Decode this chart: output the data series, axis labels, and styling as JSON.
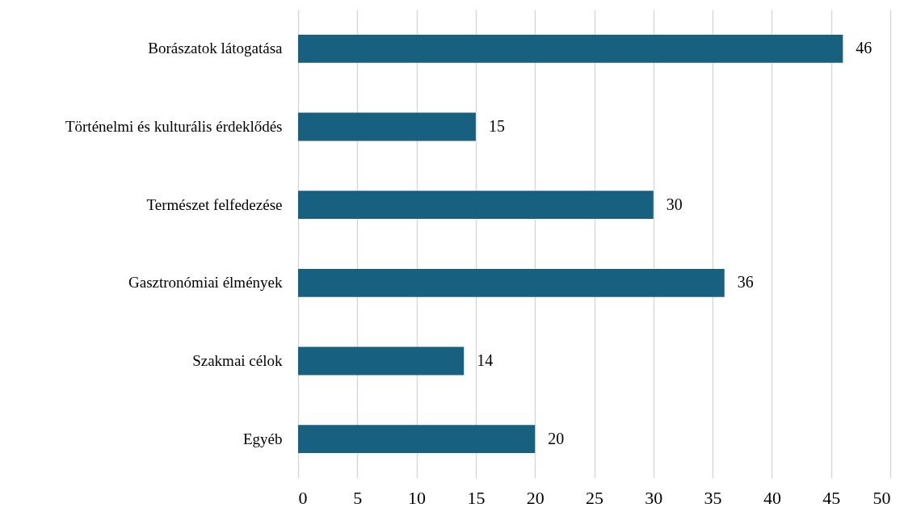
{
  "chart_data": {
    "type": "bar",
    "orientation": "horizontal",
    "categories": [
      "Borászatok látogatása",
      "Történelmi és kulturális érdeklődés",
      "Természet felfedezése",
      "Gasztronómiai élmények",
      "Szakmai célok",
      "Egyéb"
    ],
    "values": [
      46,
      15,
      30,
      36,
      14,
      20
    ],
    "color": "#17607f",
    "xlim": [
      0,
      50
    ],
    "xticks": [
      0,
      5,
      10,
      15,
      20,
      25,
      30,
      35,
      40,
      45,
      50
    ],
    "grid": "x",
    "data_labels": true
  }
}
